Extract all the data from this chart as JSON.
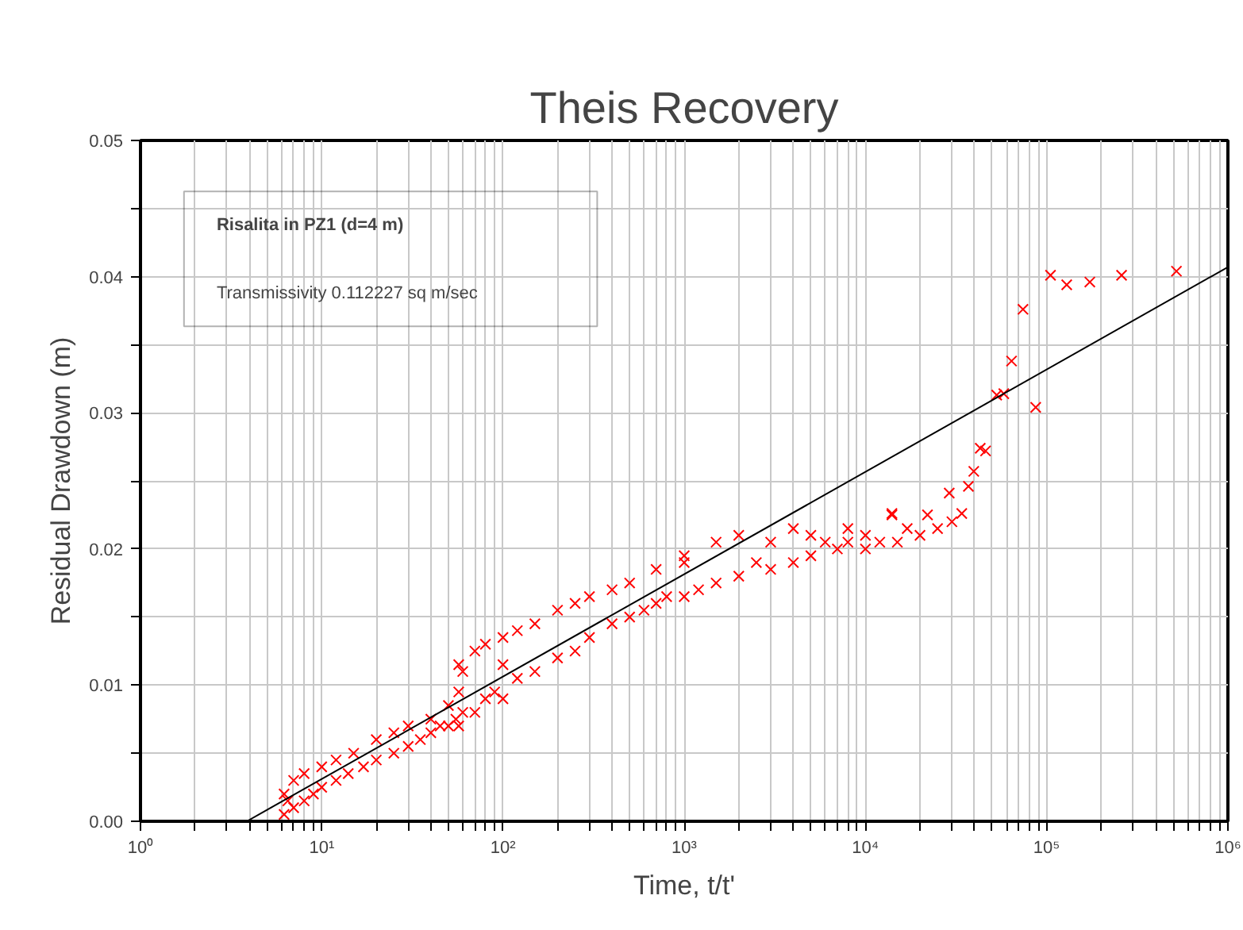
{
  "chart_data": {
    "type": "scatter",
    "title": "Theis Recovery",
    "xlabel": "Time, t/t'",
    "ylabel": "Residual Drawdown (m)",
    "annotations": [
      "Risalita in PZ1 (d=4 m)",
      "Transmissivity  0.112227  sq m/sec"
    ],
    "log": "x",
    "grid": true,
    "marker": "cross",
    "xlim": [
      1,
      1000000
    ],
    "ylim": [
      0,
      0.05
    ],
    "xticks": [
      {
        "value": 1,
        "label": "10⁰"
      },
      {
        "value": 2,
        "label": null
      },
      {
        "value": 3,
        "label": null
      },
      {
        "value": 4,
        "label": null
      },
      {
        "value": 5,
        "label": null
      },
      {
        "value": 6,
        "label": null
      },
      {
        "value": 7,
        "label": null
      },
      {
        "value": 8,
        "label": null
      },
      {
        "value": 9,
        "label": null
      },
      {
        "value": 10,
        "label": "10¹"
      },
      {
        "value": 20,
        "label": null
      },
      {
        "value": 30,
        "label": null
      },
      {
        "value": 40,
        "label": null
      },
      {
        "value": 50,
        "label": null
      },
      {
        "value": 60,
        "label": null
      },
      {
        "value": 70,
        "label": null
      },
      {
        "value": 80,
        "label": null
      },
      {
        "value": 90,
        "label": null
      },
      {
        "value": 100,
        "label": "10²"
      },
      {
        "value": 200,
        "label": null
      },
      {
        "value": 300,
        "label": null
      },
      {
        "value": 400,
        "label": null
      },
      {
        "value": 500,
        "label": null
      },
      {
        "value": 600,
        "label": null
      },
      {
        "value": 700,
        "label": null
      },
      {
        "value": 800,
        "label": null
      },
      {
        "value": 900,
        "label": null
      },
      {
        "value": 1000,
        "label": "10³"
      },
      {
        "value": 2000,
        "label": null
      },
      {
        "value": 3000,
        "label": null
      },
      {
        "value": 4000,
        "label": null
      },
      {
        "value": 5000,
        "label": null
      },
      {
        "value": 6000,
        "label": null
      },
      {
        "value": 7000,
        "label": null
      },
      {
        "value": 8000,
        "label": null
      },
      {
        "value": 9000,
        "label": null
      },
      {
        "value": 10000,
        "label": "10⁴"
      },
      {
        "value": 20000,
        "label": null
      },
      {
        "value": 30000,
        "label": null
      },
      {
        "value": 40000,
        "label": null
      },
      {
        "value": 50000,
        "label": null
      },
      {
        "value": 60000,
        "label": null
      },
      {
        "value": 70000,
        "label": null
      },
      {
        "value": 80000,
        "label": null
      },
      {
        "value": 90000,
        "label": null
      },
      {
        "value": 100000,
        "label": "10⁵"
      },
      {
        "value": 200000,
        "label": null
      },
      {
        "value": 300000,
        "label": null
      },
      {
        "value": 400000,
        "label": null
      },
      {
        "value": 500000,
        "label": null
      },
      {
        "value": 600000,
        "label": null
      },
      {
        "value": 700000,
        "label": null
      },
      {
        "value": 800000,
        "label": null
      },
      {
        "value": 900000,
        "label": null
      },
      {
        "value": 1000000,
        "label": "10⁶"
      }
    ],
    "yticks": [
      {
        "value": 0,
        "label": "0.00"
      },
      {
        "value": 0.005,
        "label": null
      },
      {
        "value": 0.01,
        "label": "0.01"
      },
      {
        "value": 0.015,
        "label": null
      },
      {
        "value": 0.02,
        "label": "0.02"
      },
      {
        "value": 0.025,
        "label": null
      },
      {
        "value": 0.03,
        "label": "0.03"
      },
      {
        "value": 0.035,
        "label": null
      },
      {
        "value": 0.04,
        "label": "0.04"
      },
      {
        "value": 0.045,
        "label": null
      },
      {
        "value": 0.05,
        "label": "0.05"
      }
    ],
    "series": [
      {
        "color": "#ff0000",
        "x": [
          6.2,
          6.2,
          6.5,
          7,
          7,
          8,
          8,
          9,
          10,
          10,
          12,
          12,
          14,
          15,
          17,
          20,
          20,
          25,
          25,
          30,
          30,
          35,
          40,
          40,
          45,
          50,
          50,
          55,
          57,
          57,
          57,
          60,
          60,
          70,
          70,
          80,
          80,
          90,
          100,
          100,
          100,
          120,
          120,
          150,
          150,
          200,
          200,
          250,
          250,
          300,
          300,
          400,
          400,
          500,
          500,
          600,
          700,
          700,
          800,
          1000,
          1000,
          1000,
          1200,
          1500,
          1500,
          2000,
          2000,
          2500,
          3000,
          3000,
          4000,
          4000,
          5000,
          5000,
          6000,
          7000,
          8000,
          8000,
          10000,
          10000,
          12000,
          14000,
          15000,
          17000,
          20000,
          22000,
          25000,
          30000,
          34000,
          14000,
          29000,
          37000,
          39600,
          43000,
          46000,
          53000,
          58000,
          64000,
          74000,
          87000,
          105000,
          129000,
          173000,
          259000,
          520000
        ],
        "values": [
          0.0005,
          0.002,
          0.0015,
          0.001,
          0.003,
          0.0015,
          0.0035,
          0.002,
          0.0025,
          0.004,
          0.003,
          0.0045,
          0.0035,
          0.005,
          0.004,
          0.0045,
          0.006,
          0.005,
          0.0065,
          0.0055,
          0.007,
          0.006,
          0.0065,
          0.0075,
          0.007,
          0.007,
          0.0085,
          0.0075,
          0.007,
          0.0095,
          0.0115,
          0.008,
          0.011,
          0.008,
          0.0125,
          0.009,
          0.013,
          0.0095,
          0.009,
          0.0135,
          0.0115,
          0.0105,
          0.014,
          0.011,
          0.0145,
          0.012,
          0.0155,
          0.0125,
          0.016,
          0.0135,
          0.0165,
          0.0145,
          0.017,
          0.015,
          0.0175,
          0.0155,
          0.016,
          0.0185,
          0.0165,
          0.0165,
          0.019,
          0.0195,
          0.017,
          0.0175,
          0.0205,
          0.018,
          0.021,
          0.019,
          0.0185,
          0.0205,
          0.019,
          0.0215,
          0.0195,
          0.021,
          0.0205,
          0.02,
          0.0205,
          0.0215,
          0.02,
          0.021,
          0.0205,
          0.0225,
          0.0205,
          0.0215,
          0.021,
          0.0225,
          0.0215,
          0.022,
          0.0226,
          0.0226,
          0.0241,
          0.0246,
          0.0257,
          0.0274,
          0.0272,
          0.0313,
          0.0314,
          0.0338,
          0.0376,
          0.0304,
          0.0401,
          0.0394,
          0.0396,
          0.0401,
          0.0404
        ]
      },
      {
        "type": "line",
        "color": "#000000",
        "marker": "none",
        "x": [
          3.86,
          1000000
        ],
        "values": [
          0,
          0.0407
        ]
      }
    ]
  }
}
